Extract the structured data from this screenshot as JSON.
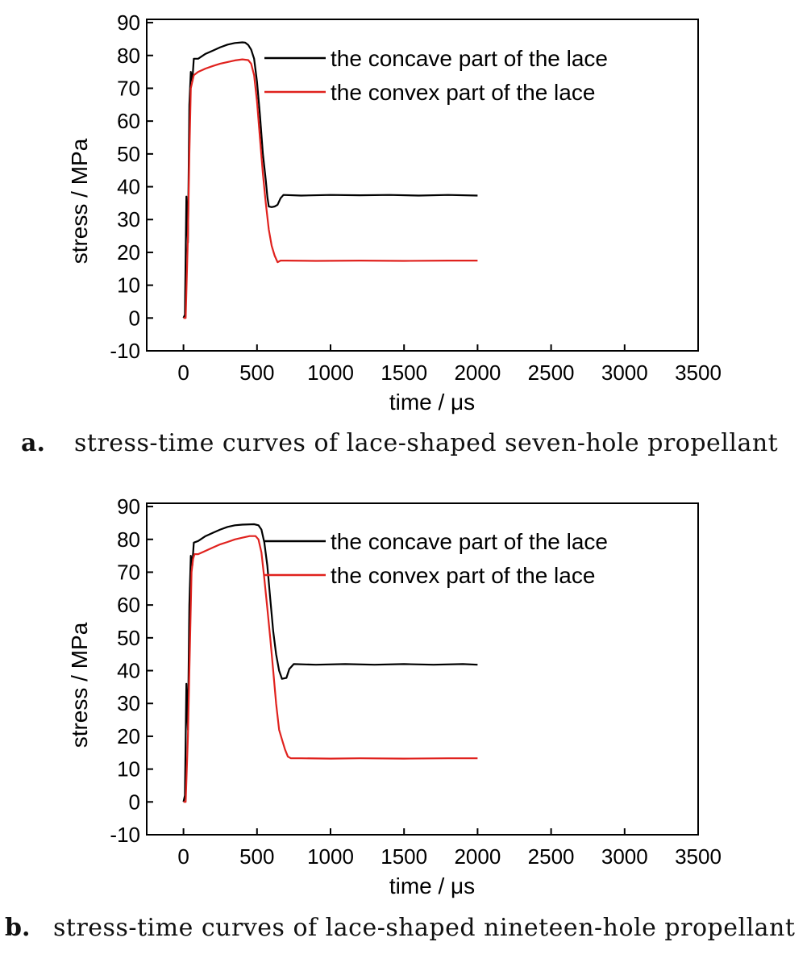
{
  "chart_data": [
    {
      "type": "line",
      "caption_letter": "a.",
      "caption": "stress-time curves of lace-shaped seven-hole propellant",
      "xlabel": "time / μs",
      "ylabel": "stress / MPa",
      "xlim": [
        -250,
        3500
      ],
      "ylim": [
        -10,
        91
      ],
      "xticks": [
        0,
        500,
        1000,
        1500,
        2000,
        2500,
        3000,
        3500
      ],
      "yticks": [
        -10,
        0,
        10,
        20,
        30,
        40,
        50,
        60,
        70,
        80,
        90
      ],
      "grid": false,
      "legend_position": "top-right",
      "series": [
        {
          "name": "the concave part of the lace",
          "color": "#000000",
          "points": [
            [
              0,
              0
            ],
            [
              10,
              1
            ],
            [
              20,
              37
            ],
            [
              30,
              23
            ],
            [
              40,
              65
            ],
            [
              50,
              75
            ],
            [
              60,
              72
            ],
            [
              70,
              79
            ],
            [
              100,
              79
            ],
            [
              150,
              80.5
            ],
            [
              200,
              81.5
            ],
            [
              250,
              82.5
            ],
            [
              300,
              83.3
            ],
            [
              350,
              83.8
            ],
            [
              400,
              84
            ],
            [
              420,
              83.9
            ],
            [
              440,
              83.2
            ],
            [
              460,
              81.8
            ],
            [
              480,
              79
            ],
            [
              500,
              72
            ],
            [
              520,
              62
            ],
            [
              540,
              50
            ],
            [
              560,
              42
            ],
            [
              570,
              37
            ],
            [
              580,
              34
            ],
            [
              600,
              33.8
            ],
            [
              620,
              34
            ],
            [
              640,
              34.5
            ],
            [
              660,
              36.5
            ],
            [
              680,
              37.5
            ],
            [
              800,
              37.3
            ],
            [
              1000,
              37.5
            ],
            [
              1200,
              37.4
            ],
            [
              1400,
              37.5
            ],
            [
              1600,
              37.3
            ],
            [
              1800,
              37.5
            ],
            [
              2000,
              37.3
            ]
          ]
        },
        {
          "name": "the convex part of the lace",
          "color": "#e0221e",
          "points": [
            [
              0,
              0
            ],
            [
              15,
              0
            ],
            [
              30,
              25
            ],
            [
              40,
              50
            ],
            [
              50,
              70
            ],
            [
              60,
              72
            ],
            [
              70,
              74
            ],
            [
              100,
              75
            ],
            [
              150,
              76
            ],
            [
              200,
              76.8
            ],
            [
              250,
              77.5
            ],
            [
              300,
              78
            ],
            [
              350,
              78.5
            ],
            [
              400,
              78.8
            ],
            [
              440,
              78.6
            ],
            [
              460,
              77.5
            ],
            [
              480,
              74
            ],
            [
              500,
              66
            ],
            [
              520,
              55
            ],
            [
              540,
              44
            ],
            [
              560,
              35
            ],
            [
              580,
              27
            ],
            [
              600,
              22
            ],
            [
              620,
              19
            ],
            [
              640,
              17
            ],
            [
              660,
              17.5
            ],
            [
              700,
              17.5
            ],
            [
              900,
              17.4
            ],
            [
              1200,
              17.5
            ],
            [
              1500,
              17.4
            ],
            [
              1800,
              17.5
            ],
            [
              2000,
              17.5
            ]
          ]
        }
      ]
    },
    {
      "type": "line",
      "caption_letter": "b.",
      "caption": "stress-time curves of lace-shaped nineteen-hole propellant",
      "xlabel": "time / μs",
      "ylabel": "stress / MPa",
      "xlim": [
        -250,
        3500
      ],
      "ylim": [
        -10,
        91
      ],
      "xticks": [
        0,
        500,
        1000,
        1500,
        2000,
        2500,
        3000,
        3500
      ],
      "yticks": [
        -10,
        0,
        10,
        20,
        30,
        40,
        50,
        60,
        70,
        80,
        90
      ],
      "grid": false,
      "legend_position": "top-right",
      "series": [
        {
          "name": "the concave part of the lace",
          "color": "#000000",
          "points": [
            [
              0,
              0
            ],
            [
              10,
              2
            ],
            [
              20,
              36
            ],
            [
              30,
              22
            ],
            [
              40,
              60
            ],
            [
              50,
              75
            ],
            [
              60,
              72
            ],
            [
              70,
              79
            ],
            [
              100,
              79.5
            ],
            [
              150,
              81
            ],
            [
              200,
              82
            ],
            [
              250,
              83
            ],
            [
              300,
              83.8
            ],
            [
              350,
              84.3
            ],
            [
              400,
              84.5
            ],
            [
              480,
              84.6
            ],
            [
              510,
              84.3
            ],
            [
              530,
              83
            ],
            [
              550,
              79
            ],
            [
              570,
              72
            ],
            [
              590,
              62
            ],
            [
              610,
              52
            ],
            [
              630,
              45
            ],
            [
              650,
              40
            ],
            [
              670,
              37.5
            ],
            [
              700,
              37.8
            ],
            [
              720,
              40.5
            ],
            [
              750,
              42
            ],
            [
              900,
              41.8
            ],
            [
              1100,
              42
            ],
            [
              1300,
              41.8
            ],
            [
              1500,
              42
            ],
            [
              1700,
              41.8
            ],
            [
              1900,
              42
            ],
            [
              2000,
              41.8
            ]
          ]
        },
        {
          "name": "the convex part of the lace",
          "color": "#e0221e",
          "points": [
            [
              0,
              0
            ],
            [
              15,
              0
            ],
            [
              30,
              20
            ],
            [
              45,
              50
            ],
            [
              55,
              70
            ],
            [
              65,
              74
            ],
            [
              75,
              75.5
            ],
            [
              100,
              75.5
            ],
            [
              150,
              76.5
            ],
            [
              200,
              77.5
            ],
            [
              250,
              78.5
            ],
            [
              300,
              79.2
            ],
            [
              350,
              80
            ],
            [
              400,
              80.5
            ],
            [
              450,
              81
            ],
            [
              490,
              81
            ],
            [
              510,
              80
            ],
            [
              530,
              76
            ],
            [
              550,
              68
            ],
            [
              570,
              59
            ],
            [
              590,
              50
            ],
            [
              610,
              40
            ],
            [
              630,
              30
            ],
            [
              650,
              22
            ],
            [
              670,
              19
            ],
            [
              690,
              16
            ],
            [
              710,
              13.8
            ],
            [
              730,
              13.3
            ],
            [
              800,
              13.3
            ],
            [
              1000,
              13.2
            ],
            [
              1200,
              13.3
            ],
            [
              1500,
              13.2
            ],
            [
              1800,
              13.3
            ],
            [
              2000,
              13.3
            ]
          ]
        }
      ]
    }
  ]
}
